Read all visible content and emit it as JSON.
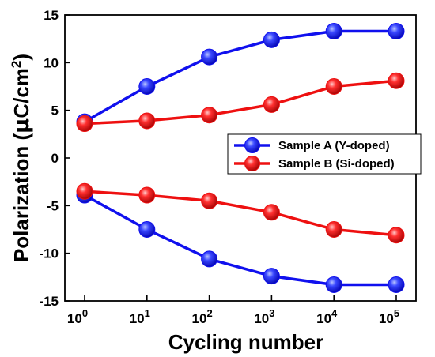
{
  "chart_data": {
    "type": "line",
    "xlabel": "Cycling number",
    "ylabel": "Polarization (μC/cm²)",
    "ylabel_parts": {
      "main": "Polarization (",
      "mu": "μ",
      "unit": "C/cm",
      "sup": "2",
      "close": ")"
    },
    "x_scale": "log",
    "x": [
      1,
      10,
      100,
      1000,
      10000,
      100000
    ],
    "x_tick_labels": [
      {
        "base": "10",
        "exp": "0"
      },
      {
        "base": "10",
        "exp": "1"
      },
      {
        "base": "10",
        "exp": "2"
      },
      {
        "base": "10",
        "exp": "3"
      },
      {
        "base": "10",
        "exp": "4"
      },
      {
        "base": "10",
        "exp": "5"
      }
    ],
    "ylim": [
      -15,
      15
    ],
    "y_ticks": [
      -15,
      -10,
      -5,
      0,
      5,
      10,
      15
    ],
    "series": [
      {
        "name": "Sample A (Y-doped)",
        "color": "#1010ee",
        "positive": [
          3.8,
          7.5,
          10.6,
          12.4,
          13.3,
          13.3
        ],
        "negative": [
          -3.9,
          -7.5,
          -10.6,
          -12.4,
          -13.3,
          -13.3
        ]
      },
      {
        "name": "Sample B (Si-doped)",
        "color": "#ee1010",
        "positive": [
          3.6,
          3.9,
          4.5,
          5.6,
          7.5,
          8.1
        ],
        "negative": [
          -3.5,
          -3.9,
          -4.5,
          -5.7,
          -7.5,
          -8.1
        ]
      }
    ],
    "legend_position": "right-middle",
    "grid": false
  }
}
